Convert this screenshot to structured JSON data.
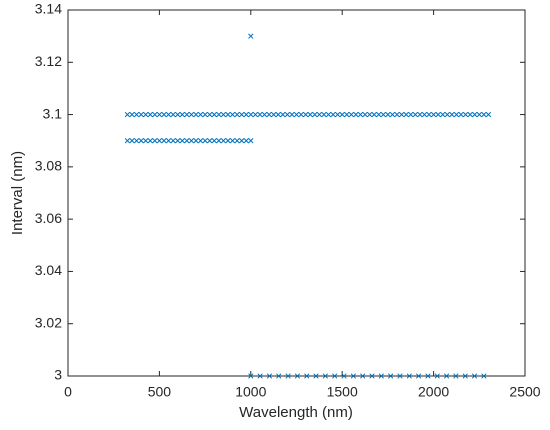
{
  "chart_data": {
    "type": "scatter",
    "xlabel": "Wavelength (nm)",
    "ylabel": "Interval (nm)",
    "xlim": [
      0,
      2500
    ],
    "xticks": [
      0,
      500,
      1000,
      1500,
      2000,
      2500
    ],
    "ylim": [
      3,
      3.14
    ],
    "yticks": [
      3,
      3.02,
      3.04,
      3.06,
      3.08,
      3.1,
      3.12,
      3.14
    ],
    "grid": false,
    "marker": "x",
    "series": [
      {
        "color": "#0072bd",
        "x": [
          325,
          350,
          375,
          400,
          425,
          450,
          475,
          500,
          525,
          550,
          575,
          600,
          625,
          650,
          675,
          700,
          725,
          750,
          775,
          800,
          825,
          850,
          875,
          900,
          925,
          950,
          975,
          1000,
          1025,
          1050,
          1075,
          1100,
          1125,
          1150,
          1175,
          1200,
          1225,
          1250,
          1275,
          1300,
          1325,
          1350,
          1375,
          1400,
          1425,
          1450,
          1475,
          1500,
          1525,
          1550,
          1575,
          1600,
          1625,
          1650,
          1675,
          1700,
          1725,
          1750,
          1775,
          1800,
          1825,
          1850,
          1875,
          1900,
          1925,
          1950,
          1975,
          2000,
          2025,
          2050,
          2075,
          2100,
          2125,
          2150,
          2175,
          2200,
          2225,
          2250,
          2275,
          2300
        ],
        "values": [
          3.1,
          3.1,
          3.1,
          3.1,
          3.1,
          3.1,
          3.1,
          3.1,
          3.1,
          3.1,
          3.1,
          3.1,
          3.1,
          3.1,
          3.1,
          3.1,
          3.1,
          3.1,
          3.1,
          3.1,
          3.1,
          3.1,
          3.1,
          3.1,
          3.1,
          3.1,
          3.1,
          3.1,
          3.1,
          3.1,
          3.1,
          3.1,
          3.1,
          3.1,
          3.1,
          3.1,
          3.1,
          3.1,
          3.1,
          3.1,
          3.1,
          3.1,
          3.1,
          3.1,
          3.1,
          3.1,
          3.1,
          3.1,
          3.1,
          3.1,
          3.1,
          3.1,
          3.1,
          3.1,
          3.1,
          3.1,
          3.1,
          3.1,
          3.1,
          3.1,
          3.1,
          3.1,
          3.1,
          3.1,
          3.1,
          3.1,
          3.1,
          3.1,
          3.1,
          3.1,
          3.1,
          3.1,
          3.1,
          3.1,
          3.1,
          3.1,
          3.1,
          3.1,
          3.1,
          3.1
        ]
      },
      {
        "color": "#0072bd",
        "x": [
          325,
          350,
          375,
          400,
          425,
          450,
          475,
          500,
          525,
          550,
          575,
          600,
          625,
          650,
          675,
          700,
          725,
          750,
          775,
          800,
          825,
          850,
          875,
          900,
          925,
          950,
          975,
          1000
        ],
        "values": [
          3.09,
          3.09,
          3.09,
          3.09,
          3.09,
          3.09,
          3.09,
          3.09,
          3.09,
          3.09,
          3.09,
          3.09,
          3.09,
          3.09,
          3.09,
          3.09,
          3.09,
          3.09,
          3.09,
          3.09,
          3.09,
          3.09,
          3.09,
          3.09,
          3.09,
          3.09,
          3.09,
          3.09
        ]
      },
      {
        "color": "#0072bd",
        "x": [
          1000
        ],
        "values": [
          3.13
        ]
      },
      {
        "color": "#0072bd",
        "x": [
          1000,
          1051,
          1102,
          1153,
          1204,
          1255,
          1306,
          1357,
          1408,
          1459,
          1510,
          1561,
          1612,
          1663,
          1714,
          1765,
          1816,
          1867,
          1918,
          1969,
          2020,
          2071,
          2122,
          2173,
          2224,
          2275
        ],
        "values": [
          3,
          3,
          3,
          3,
          3,
          3,
          3,
          3,
          3,
          3,
          3,
          3,
          3,
          3,
          3,
          3,
          3,
          3,
          3,
          3,
          3,
          3,
          3,
          3,
          3,
          3
        ]
      }
    ]
  }
}
